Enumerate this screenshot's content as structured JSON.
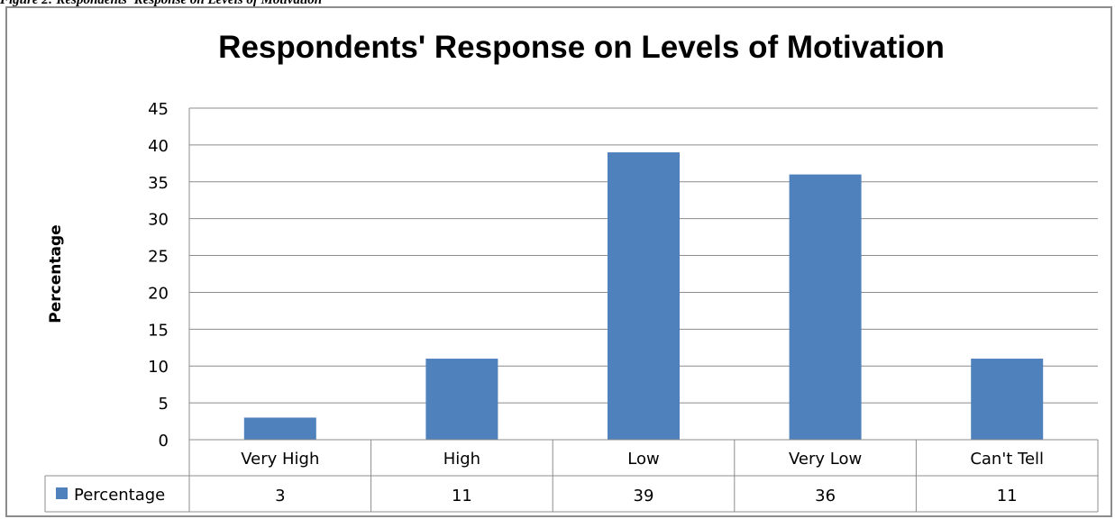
{
  "caption": "Figure 2: Respondents' Response on Levels of Motivation",
  "chart_data": {
    "type": "bar",
    "title": "Respondents' Response on Levels of Motivation",
    "xlabel": "",
    "ylabel": "Percentage",
    "categories": [
      "Very High",
      "High",
      "Low",
      "Very Low",
      "Can't Tell"
    ],
    "series": [
      {
        "name": "Percentage",
        "values": [
          3,
          11,
          39,
          36,
          11
        ],
        "color": "#4f81bd"
      }
    ],
    "ylim": [
      0,
      45
    ],
    "yticks": [
      0,
      5,
      10,
      15,
      20,
      25,
      30,
      35,
      40,
      45
    ],
    "grid": true,
    "legend": "data-table-left",
    "data_table": true
  },
  "colors": {
    "bar": "#4f81bd",
    "grid": "#8c8c8c",
    "frame": "#8c8c8c"
  }
}
